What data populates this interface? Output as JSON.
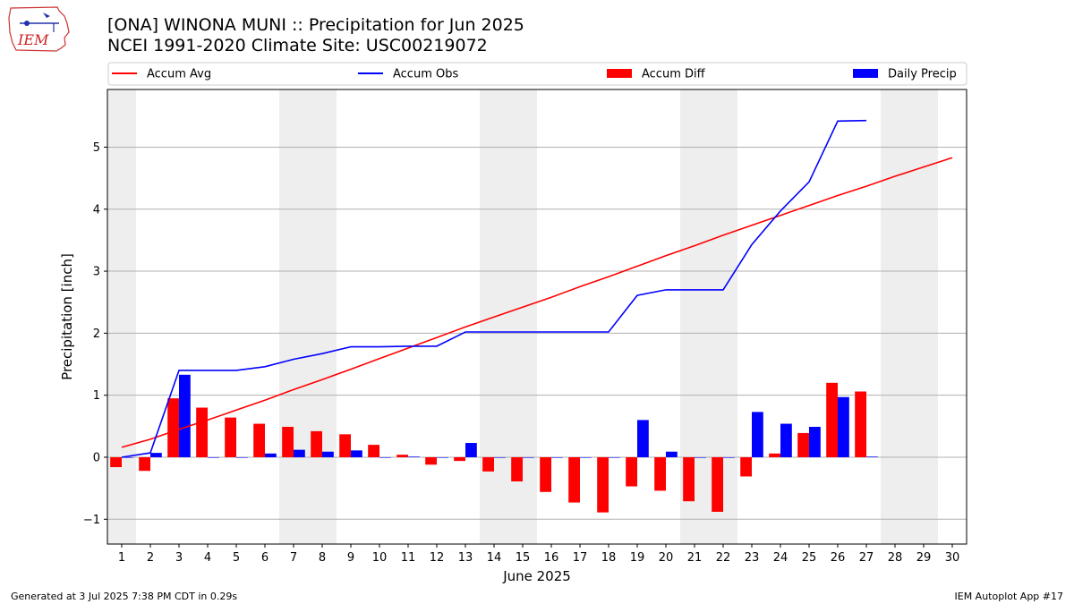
{
  "header": {
    "title_line1": "[ONA] WINONA MUNI :: Precipitation for Jun 2025",
    "title_line2": "NCEI 1991-2020 Climate Site: USC00219072",
    "logo_text": "IEM"
  },
  "footer": {
    "left": "Generated at 3 Jul 2025 7:38 PM CDT in 0.29s",
    "right": "IEM Autoplot App #17"
  },
  "colors": {
    "accum_avg": "#ff0000",
    "accum_obs": "#0000ff",
    "accum_diff": "#ff0000",
    "daily_precip": "#0000ff",
    "weekend_shade": "#eeeeee",
    "grid": "#b0b0b0"
  },
  "chart_data": {
    "type": "bar",
    "xlabel": "June 2025",
    "ylabel": "Precipitation [inch]",
    "xlim": [
      0.5,
      30.5
    ],
    "ylim": [
      -1.4,
      5.93
    ],
    "yticks": [
      -1,
      0,
      1,
      2,
      3,
      4,
      5
    ],
    "ytick_labels": [
      "−1",
      "0",
      "1",
      "2",
      "3",
      "4",
      "5"
    ],
    "grid": "horizontal",
    "legend_position": "top",
    "days": [
      1,
      2,
      3,
      4,
      5,
      6,
      7,
      8,
      9,
      10,
      11,
      12,
      13,
      14,
      15,
      16,
      17,
      18,
      19,
      20,
      21,
      22,
      23,
      24,
      25,
      26,
      27,
      28,
      29,
      30
    ],
    "shaded_day_ranges": [
      [
        0.5,
        1.5
      ],
      [
        6.5,
        8.5
      ],
      [
        13.5,
        15.5
      ],
      [
        20.5,
        22.5
      ],
      [
        27.5,
        29.5
      ]
    ],
    "series": [
      {
        "name": "Accum Avg",
        "kind": "line",
        "x": [
          1,
          2,
          3,
          4,
          5,
          6,
          7,
          8,
          9,
          10,
          11,
          12,
          13,
          14,
          15,
          16,
          17,
          18,
          19,
          20,
          21,
          22,
          23,
          24,
          25,
          26,
          27,
          28,
          29,
          30
        ],
        "values": [
          0.16,
          0.29,
          0.45,
          0.6,
          0.76,
          0.92,
          1.09,
          1.25,
          1.42,
          1.59,
          1.76,
          1.93,
          2.1,
          2.26,
          2.42,
          2.58,
          2.75,
          2.91,
          3.08,
          3.25,
          3.41,
          3.58,
          3.74,
          3.9,
          4.06,
          4.22,
          4.37,
          4.53,
          4.68,
          4.83
        ]
      },
      {
        "name": "Accum Obs",
        "kind": "line",
        "x": [
          1,
          2,
          3,
          4,
          5,
          6,
          7,
          8,
          9,
          10,
          11,
          12,
          13,
          14,
          15,
          16,
          17,
          18,
          19,
          20,
          21,
          22,
          23,
          24,
          25,
          26,
          27
        ],
        "values": [
          0,
          0.07,
          1.4,
          1.4,
          1.4,
          1.46,
          1.58,
          1.67,
          1.78,
          1.78,
          1.79,
          1.79,
          2.02,
          2.02,
          2.02,
          2.02,
          2.02,
          2.02,
          2.61,
          2.7,
          2.7,
          2.7,
          3.43,
          3.97,
          4.44,
          5.42,
          5.43
        ]
      },
      {
        "name": "Accum Diff",
        "kind": "bar",
        "x": [
          1,
          2,
          3,
          4,
          5,
          6,
          7,
          8,
          9,
          10,
          11,
          12,
          13,
          14,
          15,
          16,
          17,
          18,
          19,
          20,
          21,
          22,
          23,
          24,
          25,
          26,
          27
        ],
        "values": [
          -0.16,
          -0.22,
          0.95,
          0.8,
          0.64,
          0.54,
          0.49,
          0.42,
          0.37,
          0.2,
          0.04,
          -0.12,
          -0.06,
          -0.23,
          -0.39,
          -0.56,
          -0.73,
          -0.89,
          -0.47,
          -0.54,
          -0.71,
          -0.88,
          -0.31,
          0.06,
          0.39,
          1.2,
          1.06
        ]
      },
      {
        "name": "Daily Precip",
        "kind": "bar",
        "x": [
          1,
          2,
          3,
          4,
          5,
          6,
          7,
          8,
          9,
          10,
          11,
          12,
          13,
          14,
          15,
          16,
          17,
          18,
          19,
          20,
          21,
          22,
          23,
          24,
          25,
          26,
          27
        ],
        "values": [
          0,
          0.07,
          1.33,
          0,
          0,
          0.06,
          0.12,
          0.09,
          0.11,
          0,
          0.01,
          0,
          0.23,
          0,
          0,
          0,
          0,
          0,
          0.6,
          0.09,
          0,
          0,
          0.73,
          0.54,
          0.49,
          0.97,
          0.01
        ]
      }
    ]
  }
}
